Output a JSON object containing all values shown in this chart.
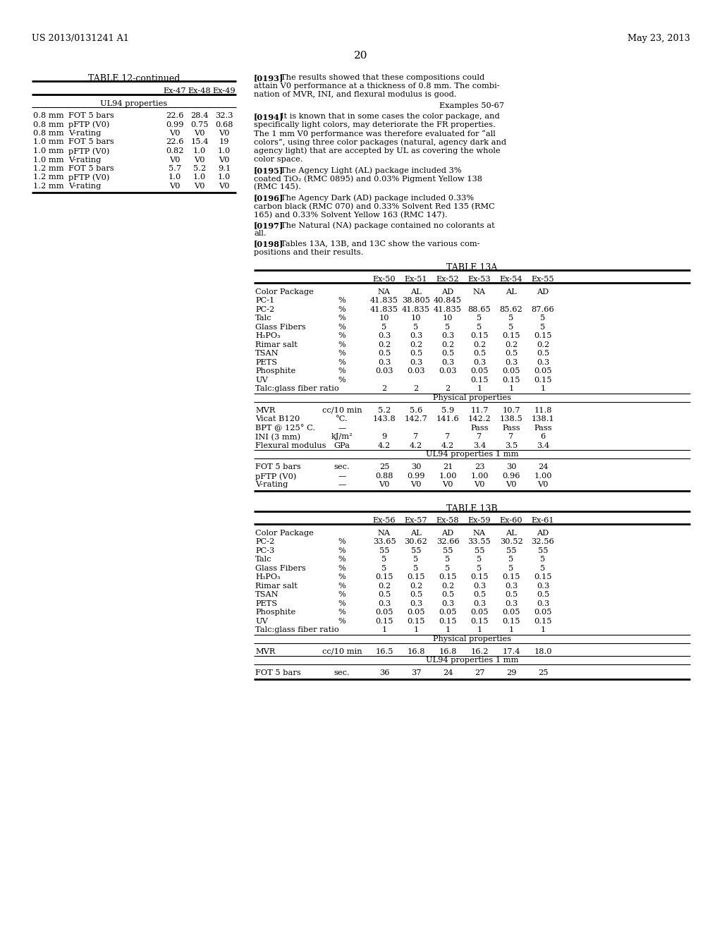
{
  "page_header_left": "US 2013/0131241 A1",
  "page_header_right": "May 23, 2013",
  "page_number": "20",
  "background_color": "#ffffff",
  "table12_continued": {
    "title": "TABLE 12-continued",
    "cols": [
      "Ex-47",
      "Ex-48",
      "Ex-49"
    ],
    "section_header": "UL94 properties",
    "rows": [
      [
        "0.8 mm",
        "FOT 5 bars",
        "22.6",
        "28.4",
        "32.3"
      ],
      [
        "0.8 mm",
        "pFTP (V0)",
        "0.99",
        "0.75",
        "0.68"
      ],
      [
        "0.8 mm",
        "V-rating",
        "V0",
        "V0",
        "V0"
      ],
      [
        "1.0 mm",
        "FOT 5 bars",
        "22.6",
        "15.4",
        "19"
      ],
      [
        "1.0 mm",
        "pFTP (V0)",
        "0.82",
        "1.0",
        "1.0"
      ],
      [
        "1.0 mm",
        "V-rating",
        "V0",
        "V0",
        "V0"
      ],
      [
        "1.2 mm",
        "FOT 5 bars",
        "5.7",
        "5.2",
        "9.1"
      ],
      [
        "1.2 mm",
        "pFTP (V0)",
        "1.0",
        "1.0",
        "1.0"
      ],
      [
        "1.2 mm",
        "V-rating",
        "V0",
        "V0",
        "V0"
      ]
    ]
  },
  "para0193_lines": [
    "[0193]  The results showed that these compositions could",
    "attain V0 performance at a thickness of 0.8 mm. The combi-",
    "nation of MVR, INI, and flexural modulus is good."
  ],
  "examples_header": "Examples 50-67",
  "para0194_lines": [
    "[0194]  It is known that in some cases the color package, and",
    "specifically light colors, may deteriorate the FR properties.",
    "The 1 mm V0 performance was therefore evaluated for “all",
    "colors”, using three color packages (natural, agency dark and",
    "agency light) that are accepted by UL as covering the whole",
    "color space."
  ],
  "para0195_lines": [
    "[0195]  The Agency Light (AL) package included 3%",
    "coated TiO₂ (RMC 0895) and 0.03% Pigment Yellow 138",
    "(RMC 145)."
  ],
  "para0196_lines": [
    "[0196]  The Agency Dark (AD) package included 0.33%",
    "carbon black (RMC 070) and 0.33% Solvent Red 135 (RMC",
    "165) and 0.33% Solvent Yellow 163 (RMC 147)."
  ],
  "para0197_lines": [
    "[0197]  The Natural (NA) package contained no colorants at",
    "all."
  ],
  "para0198_lines": [
    "[0198]  Tables 13A, 13B, and 13C show the various com-",
    "positions and their results."
  ],
  "table13a": {
    "title": "TABLE 13A",
    "cols": [
      "Ex-50",
      "Ex-51",
      "Ex-52",
      "Ex-53",
      "Ex-54",
      "Ex-55"
    ],
    "rows": [
      [
        "Color Package",
        "",
        "NA",
        "AL",
        "AD",
        "NA",
        "AL",
        "AD"
      ],
      [
        "PC-1",
        "%",
        "41.835",
        "38.805",
        "40.845",
        "",
        "",
        ""
      ],
      [
        "PC-2",
        "%",
        "41.835",
        "41.835",
        "41.835",
        "88.65",
        "85.62",
        "87.66"
      ],
      [
        "Talc",
        "%",
        "10",
        "10",
        "10",
        "5",
        "5",
        "5"
      ],
      [
        "Glass Fibers",
        "%",
        "5",
        "5",
        "5",
        "5",
        "5",
        "5"
      ],
      [
        "H₃PO₃",
        "%",
        "0.3",
        "0.3",
        "0.3",
        "0.15",
        "0.15",
        "0.15"
      ],
      [
        "Rimar salt",
        "%",
        "0.2",
        "0.2",
        "0.2",
        "0.2",
        "0.2",
        "0.2"
      ],
      [
        "TSAN",
        "%",
        "0.5",
        "0.5",
        "0.5",
        "0.5",
        "0.5",
        "0.5"
      ],
      [
        "PETS",
        "%",
        "0.3",
        "0.3",
        "0.3",
        "0.3",
        "0.3",
        "0.3"
      ],
      [
        "Phosphite",
        "%",
        "0.03",
        "0.03",
        "0.03",
        "0.05",
        "0.05",
        "0.05"
      ],
      [
        "UV",
        "%",
        "",
        "",
        "",
        "0.15",
        "0.15",
        "0.15"
      ],
      [
        "Talc:glass fiber ratio",
        "",
        "2",
        "2",
        "2",
        "1",
        "1",
        "1"
      ],
      [
        "__section__",
        "Physical properties"
      ],
      [
        "MVR",
        "cc/10 min",
        "5.2",
        "5.6",
        "5.9",
        "11.7",
        "10.7",
        "11.8"
      ],
      [
        "Vicat B120",
        "°C.",
        "143.8",
        "142.7",
        "141.6",
        "142.2",
        "138.5",
        "138.1"
      ],
      [
        "BPT @ 125° C.",
        "—",
        "",
        "",
        "",
        "Pass",
        "Pass",
        "Pass"
      ],
      [
        "INI (3 mm)",
        "kJ/m²",
        "9",
        "7",
        "7",
        "7",
        "7",
        "6"
      ],
      [
        "Flexural modulus",
        "GPa",
        "4.2",
        "4.2",
        "4.2",
        "3.4",
        "3.5",
        "3.4"
      ],
      [
        "__section__",
        "UL94 properties 1 mm"
      ],
      [
        "FOT 5 bars",
        "sec.",
        "25",
        "30",
        "21",
        "23",
        "30",
        "24"
      ],
      [
        "pFTP (V0)",
        "—",
        "0.88",
        "0.99",
        "1.00",
        "1.00",
        "0.96",
        "1.00"
      ],
      [
        "V-rating",
        "—",
        "V0",
        "V0",
        "V0",
        "V0",
        "V0",
        "V0"
      ]
    ]
  },
  "table13b": {
    "title": "TABLE 13B",
    "cols": [
      "Ex-56",
      "Ex-57",
      "Ex-58",
      "Ex-59",
      "Ex-60",
      "Ex-61"
    ],
    "rows": [
      [
        "Color Package",
        "",
        "NA",
        "AL",
        "AD",
        "NA",
        "AL",
        "AD"
      ],
      [
        "PC-2",
        "%",
        "33.65",
        "30.62",
        "32.66",
        "33.55",
        "30.52",
        "32.56"
      ],
      [
        "PC-3",
        "%",
        "55",
        "55",
        "55",
        "55",
        "55",
        "55"
      ],
      [
        "Talc",
        "%",
        "5",
        "5",
        "5",
        "5",
        "5",
        "5"
      ],
      [
        "Glass Fibers",
        "%",
        "5",
        "5",
        "5",
        "5",
        "5",
        "5"
      ],
      [
        "H₃PO₃",
        "%",
        "0.15",
        "0.15",
        "0.15",
        "0.15",
        "0.15",
        "0.15"
      ],
      [
        "Rimar salt",
        "%",
        "0.2",
        "0.2",
        "0.2",
        "0.3",
        "0.3",
        "0.3"
      ],
      [
        "TSAN",
        "%",
        "0.5",
        "0.5",
        "0.5",
        "0.5",
        "0.5",
        "0.5"
      ],
      [
        "PETS",
        "%",
        "0.3",
        "0.3",
        "0.3",
        "0.3",
        "0.3",
        "0.3"
      ],
      [
        "Phosphite",
        "%",
        "0.05",
        "0.05",
        "0.05",
        "0.05",
        "0.05",
        "0.05"
      ],
      [
        "UV",
        "%",
        "0.15",
        "0.15",
        "0.15",
        "0.15",
        "0.15",
        "0.15"
      ],
      [
        "Talc:glass fiber ratio",
        "",
        "1",
        "1",
        "1",
        "1",
        "1",
        "1"
      ],
      [
        "__section__",
        "Physical properties"
      ],
      [
        "MVR",
        "cc/10 min",
        "16.5",
        "16.8",
        "16.8",
        "16.2",
        "17.4",
        "18.0"
      ],
      [
        "__section__",
        "UL94 properties 1 mm"
      ],
      [
        "FOT 5 bars",
        "sec.",
        "36",
        "37",
        "24",
        "27",
        "29",
        "25"
      ]
    ]
  }
}
